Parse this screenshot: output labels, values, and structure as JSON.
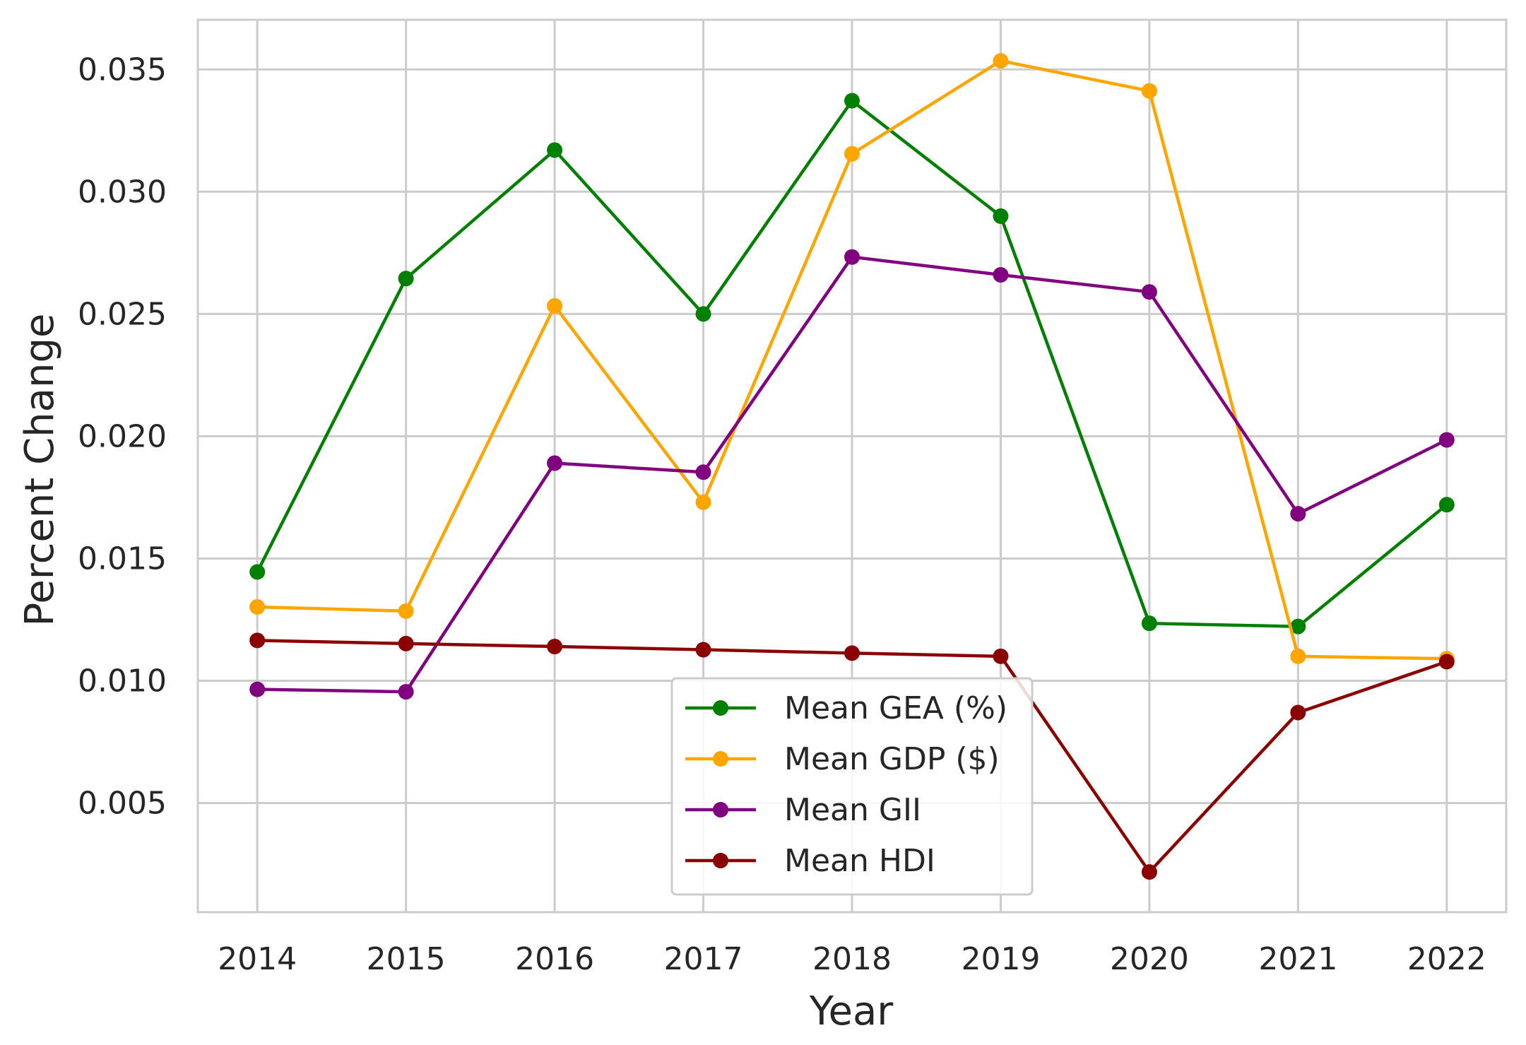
{
  "chart_data": {
    "type": "line",
    "title": "",
    "xlabel": "Year",
    "ylabel": "Percent Change",
    "x": [
      "2014",
      "2015",
      "2016",
      "2017",
      "2018",
      "2019",
      "2020",
      "2021",
      "2022"
    ],
    "xlim": [
      -0.4,
      8.4
    ],
    "ylim": [
      0.000537,
      0.03703
    ],
    "yticks": [
      0.005,
      0.01,
      0.015,
      0.02,
      0.025,
      0.03,
      0.035
    ],
    "ytick_labels": [
      "0.005",
      "0.010",
      "0.015",
      "0.020",
      "0.025",
      "0.030",
      "0.035"
    ],
    "grid": true,
    "legend_position": "lower center",
    "series": [
      {
        "name": "Mean GEA (%)",
        "color": "#008000",
        "values": [
          0.01445,
          0.02645,
          0.0317,
          0.025,
          0.03372,
          0.029,
          0.01235,
          0.01222,
          0.0172
        ]
      },
      {
        "name": "Mean GDP ($)",
        "color": "#FFA500",
        "values": [
          0.01302,
          0.01285,
          0.02533,
          0.0173,
          0.03155,
          0.03535,
          0.03412,
          0.011,
          0.0109
        ]
      },
      {
        "name": "Mean GII",
        "color": "#800080",
        "values": [
          0.00965,
          0.00955,
          0.0189,
          0.01853,
          0.02733,
          0.0266,
          0.0259,
          0.01683,
          0.01985
        ]
      },
      {
        "name": "Mean HDI",
        "color": "#8B0000",
        "values": [
          0.01165,
          0.01152,
          0.0114,
          0.01127,
          0.01113,
          0.011,
          0.00218,
          0.0087,
          0.01078
        ]
      }
    ]
  }
}
